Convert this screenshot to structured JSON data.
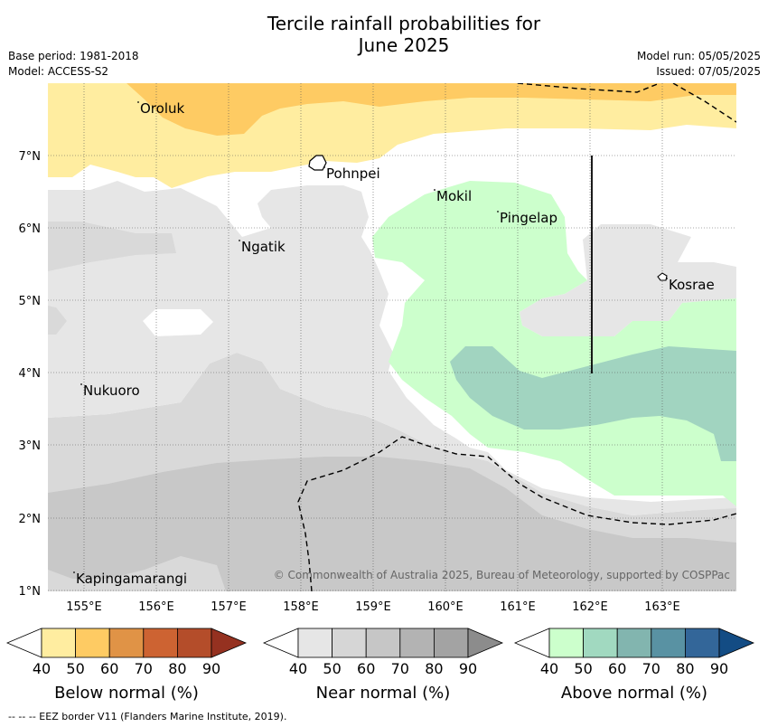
{
  "title": {
    "line1": "Tercile rainfall probabilities for",
    "line2": "June 2025"
  },
  "info": {
    "base_period": "Base period: 1981-2018",
    "model": "Model: ACCESS-S2",
    "model_run": "Model run: 05/05/2025",
    "issued": "Issued: 07/05/2025"
  },
  "axes": {
    "x_ticks": [
      "155°E",
      "156°E",
      "157°E",
      "158°E",
      "159°E",
      "160°E",
      "161°E",
      "162°E",
      "163°E"
    ],
    "y_ticks": [
      "7°N",
      "6°N",
      "5°N",
      "4°N",
      "3°N",
      "2°N",
      "1°N"
    ]
  },
  "places": [
    "Oroluk",
    "Pohnpei",
    "Mokil",
    "Pingelap",
    "Ngatik",
    "Kosrae",
    "Nukuoro",
    "Kapingamarangi"
  ],
  "copyright": "© Commonwealth of Australia 2025, Bureau of Meteorology, supported by COSPPac",
  "colorbars": [
    {
      "name": "below",
      "title": "Below normal (%)",
      "ticks": [
        "40",
        "50",
        "60",
        "70",
        "80",
        "90"
      ],
      "colors": [
        "#ffeda0",
        "#fecb63",
        "#e09346",
        "#cd6332",
        "#b44d2a",
        "#953120"
      ]
    },
    {
      "name": "near",
      "title": "Near normal (%)",
      "ticks": [
        "40",
        "50",
        "60",
        "70",
        "80",
        "90"
      ],
      "colors": [
        "#e6e6e6",
        "#d6d6d6",
        "#c6c6c6",
        "#b3b3b3",
        "#a3a3a3",
        "#8c8c8c"
      ]
    },
    {
      "name": "above",
      "title": "Above normal (%)",
      "ticks": [
        "40",
        "50",
        "60",
        "70",
        "80",
        "90"
      ],
      "colors": [
        "#ccffcc",
        "#a1d9c0",
        "#82b5af",
        "#5992a3",
        "#336699",
        "#134c84"
      ]
    }
  ],
  "footer": "--  --  -- EEZ border V11 (Flanders Marine Institute, 2019).",
  "map_colors": {
    "below_50": "#ffeda0",
    "below_60": "#fecb63",
    "near_40": "#e6e6e6",
    "near_50": "#d9d9d9",
    "near_60": "#c8c8c8",
    "above_40": "#ccffcc",
    "above_50": "#a1d4c0"
  }
}
